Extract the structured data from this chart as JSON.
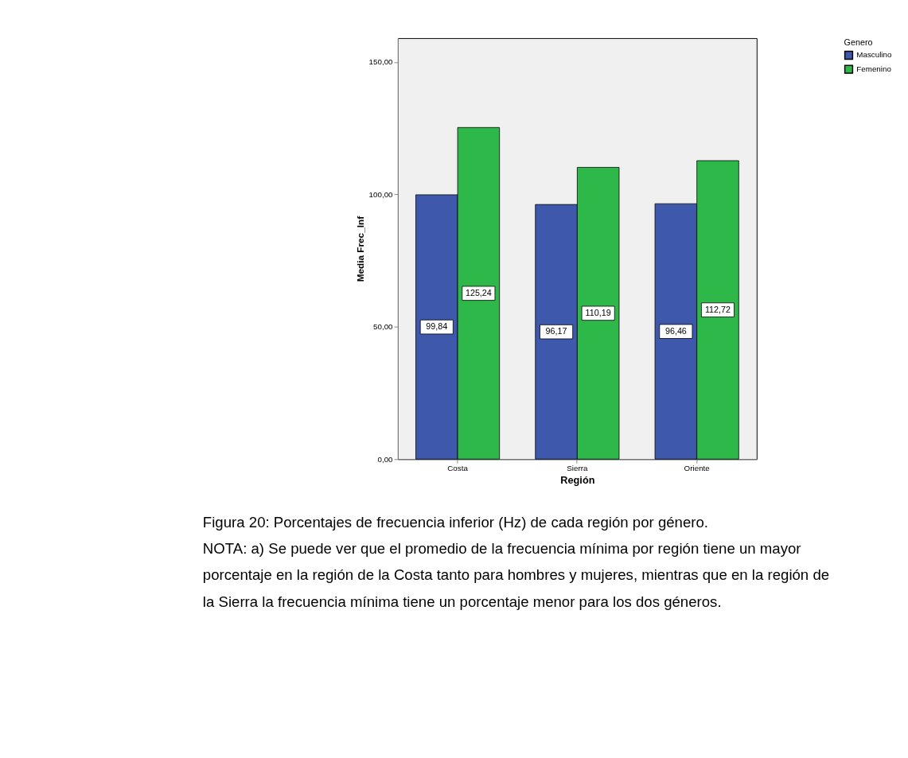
{
  "chart_data": {
    "type": "bar",
    "xlabel": "Región",
    "ylabel": "Media Frec_Inf",
    "legend_title": "Genero",
    "categories": [
      "Costa",
      "Sierra",
      "Oriente"
    ],
    "series": [
      {
        "name": "Masculino",
        "color": "#3e58ac",
        "values": [
          99.84,
          96.17,
          96.46
        ],
        "value_labels": [
          "99,84",
          "96,17",
          "96,46"
        ]
      },
      {
        "name": "Femenino",
        "color": "#2fb84a",
        "values": [
          125.24,
          110.19,
          112.72
        ],
        "value_labels": [
          "125,24",
          "110,19",
          "112,72"
        ]
      }
    ],
    "ylim": [
      0,
      159
    ],
    "yticks": [
      {
        "value": 0,
        "label": "0,00"
      },
      {
        "value": 50,
        "label": "50,00"
      },
      {
        "value": 100,
        "label": "100,00"
      },
      {
        "value": 150,
        "label": "150,00"
      }
    ],
    "grid": false,
    "legend": "top right",
    "annotations": [
      "Figura 20: Porcentajes de frecuencia inferior (Hz) de cada región por género.",
      "NOTA: a) Se puede ver que el promedio de la frecuencia mínima por región tiene un mayor porcentaje en la región de la Costa tanto para hombres y mujeres, mientras que en la región de la Sierra la frecuencia mínima tiene un porcentaje menor para los dos  géneros."
    ]
  }
}
